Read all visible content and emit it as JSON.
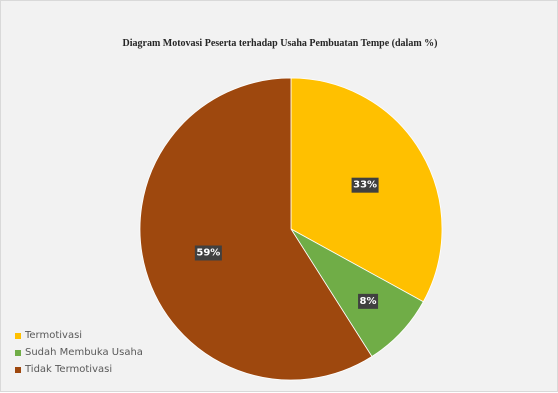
{
  "chart_data": {
    "type": "pie",
    "title": "Diagram Motovasi Peserta terhadap Usaha Pembuatan Tempe (dalam %)",
    "categories": [
      "Termotivasi",
      "Sudah Membuka Usaha",
      "Tidak Termotivasi"
    ],
    "values": [
      33,
      8,
      59
    ],
    "labels": [
      "33%",
      "8%",
      "59%"
    ],
    "colors": [
      "#ffc000",
      "#70ad47",
      "#9e480e"
    ],
    "start_angle_deg": 0,
    "direction": "clockwise",
    "legend_position": "bottom-left"
  }
}
